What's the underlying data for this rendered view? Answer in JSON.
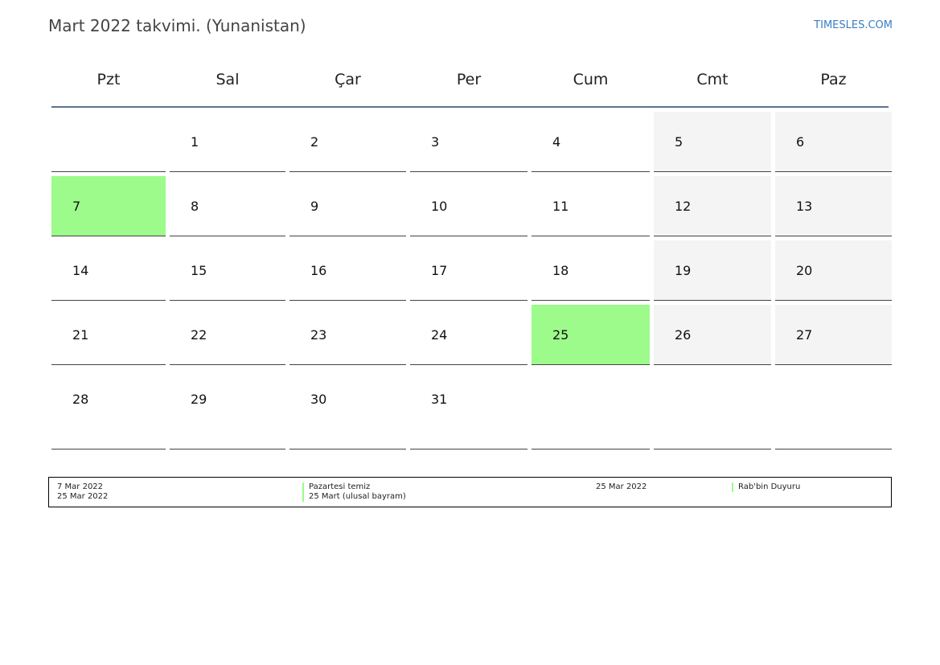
{
  "header": {
    "title": "Mart 2022 takvimi. (Yunanistan)",
    "brand": "TIMESLES.COM"
  },
  "weekdays": [
    "Pzt",
    "Sal",
    "Çar",
    "Per",
    "Cum",
    "Cmt",
    "Paz"
  ],
  "weeks": [
    [
      "",
      "1",
      "2",
      "3",
      "4",
      "5",
      "6"
    ],
    [
      "7",
      "8",
      "9",
      "10",
      "11",
      "12",
      "13"
    ],
    [
      "14",
      "15",
      "16",
      "17",
      "18",
      "19",
      "20"
    ],
    [
      "21",
      "22",
      "23",
      "24",
      "25",
      "26",
      "27"
    ],
    [
      "28",
      "29",
      "30",
      "31",
      "",
      "",
      ""
    ]
  ],
  "colors": {
    "holiday": "#9cfb8a",
    "weekend": "#f4f4f4",
    "header_rule": "#5b7391",
    "brand": "#3a7fc1"
  },
  "legend": {
    "col1": [
      {
        "date": "7 Mar 2022",
        "name": "Pazartesi temiz"
      },
      {
        "date": "25 Mar 2022",
        "name": "25 Mart (ulusal bayram)"
      }
    ],
    "col2": [
      {
        "date": "25 Mar 2022",
        "name": "Rab'bin Duyuru"
      }
    ]
  }
}
